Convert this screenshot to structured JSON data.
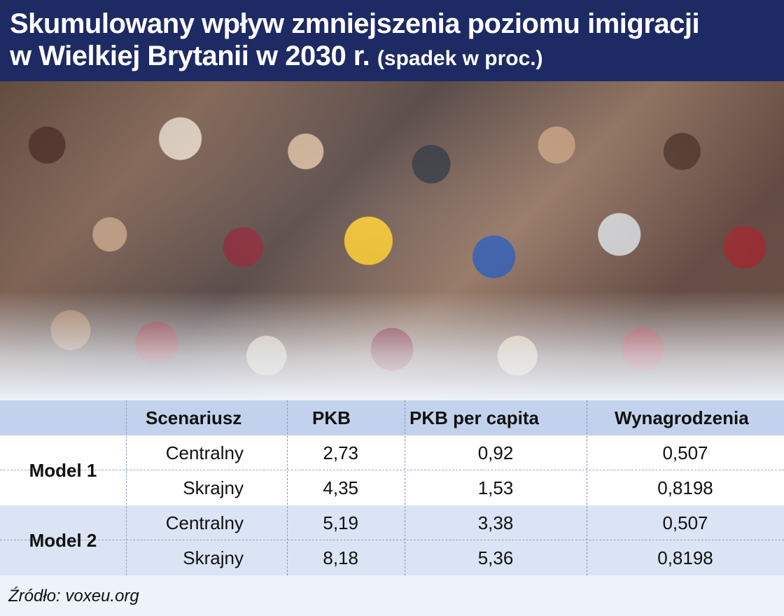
{
  "header": {
    "title_line1": "Skumulowany wpływ zmniejszenia poziomu imigracji",
    "title_line2": "w Wielkiej Brytanii w 2030 r.",
    "title_sub": "(spadek w proc.)"
  },
  "table": {
    "columns": [
      "",
      "Scenariusz",
      "PKB",
      "PKB per capita",
      "Wynagrodzenia"
    ],
    "models": [
      {
        "name": "Model 1",
        "rows": [
          {
            "scenario": "Centralny",
            "pkb": "2,73",
            "pkb_per_capita": "0,92",
            "wages": "0,507"
          },
          {
            "scenario": "Skrajny",
            "pkb": "4,35",
            "pkb_per_capita": "1,53",
            "wages": "0,8198"
          }
        ]
      },
      {
        "name": "Model 2",
        "rows": [
          {
            "scenario": "Centralny",
            "pkb": "5,19",
            "pkb_per_capita": "3,38",
            "wages": "0,507"
          },
          {
            "scenario": "Skrajny",
            "pkb": "8,18",
            "pkb_per_capita": "5,36",
            "wages": "0,8198"
          }
        ]
      }
    ]
  },
  "chart_data": {
    "type": "table",
    "title": "Skumulowany wpływ zmniejszenia poziomu imigracji w Wielkiej Brytanii w 2030 r.",
    "subtitle": "(spadek w proc.)",
    "columns": [
      "Scenariusz",
      "PKB",
      "PKB per capita",
      "Wynagrodzenia"
    ],
    "rows": [
      {
        "model": "Model 1",
        "scenario": "Centralny",
        "values": [
          2.73,
          0.92,
          0.507
        ]
      },
      {
        "model": "Model 1",
        "scenario": "Skrajny",
        "values": [
          4.35,
          1.53,
          0.8198
        ]
      },
      {
        "model": "Model 2",
        "scenario": "Centralny",
        "values": [
          5.19,
          3.38,
          0.507
        ]
      },
      {
        "model": "Model 2",
        "scenario": "Skrajny",
        "values": [
          8.18,
          5.36,
          0.8198
        ]
      }
    ],
    "source": "Źródło: voxeu.org"
  },
  "footer": {
    "source": "Źródło: voxeu.org"
  },
  "colors": {
    "header_bg": "#1d2a63",
    "table_header_bg": "#c3d2ec",
    "model2_bg": "#dbe4f4"
  }
}
